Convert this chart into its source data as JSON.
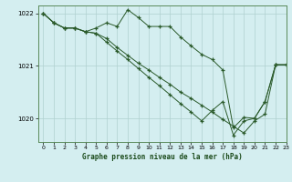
{
  "title": "Graphe pression niveau de la mer (hPa)",
  "bg_color": "#d4eef0",
  "grid_color": "#b0d0d0",
  "line_color": "#2a5a2a",
  "xlim": [
    -0.5,
    23
  ],
  "ylim": [
    1019.55,
    1022.15
  ],
  "yticks": [
    1020,
    1021,
    1022
  ],
  "xticks": [
    0,
    1,
    2,
    3,
    4,
    5,
    6,
    7,
    8,
    9,
    10,
    11,
    12,
    13,
    14,
    15,
    16,
    17,
    18,
    19,
    20,
    21,
    22,
    23
  ],
  "series1_x": [
    0,
    1,
    2,
    3,
    4,
    5,
    6,
    7,
    8,
    9,
    10,
    11,
    12,
    13,
    14,
    15,
    16,
    17,
    18,
    19,
    20,
    21,
    22,
    23
  ],
  "series1_y": [
    1022.0,
    1021.82,
    1021.72,
    1021.72,
    1021.65,
    1021.72,
    1021.82,
    1021.75,
    1022.07,
    1021.92,
    1021.75,
    1021.75,
    1021.75,
    1021.55,
    1021.38,
    1021.22,
    1021.12,
    1020.92,
    1019.82,
    1020.02,
    1020.0,
    1020.32,
    1021.02,
    1021.02
  ],
  "series2_x": [
    0,
    1,
    2,
    3,
    4,
    5,
    6,
    7,
    8,
    9,
    10,
    11,
    12,
    13,
    14,
    15,
    16,
    17,
    18,
    19,
    20,
    21,
    22,
    23
  ],
  "series2_y": [
    1022.0,
    1021.82,
    1021.72,
    1021.72,
    1021.65,
    1021.62,
    1021.52,
    1021.35,
    1021.2,
    1021.05,
    1020.92,
    1020.78,
    1020.65,
    1020.5,
    1020.38,
    1020.25,
    1020.12,
    1019.98,
    1019.85,
    1019.72,
    1019.95,
    1020.08,
    1021.02,
    1021.02
  ],
  "series3_x": [
    0,
    1,
    2,
    3,
    4,
    5,
    6,
    7,
    8,
    9,
    10,
    11,
    12,
    13,
    14,
    15,
    16,
    17,
    18,
    19,
    20,
    21,
    22,
    23
  ],
  "series3_y": [
    1022.0,
    1021.82,
    1021.72,
    1021.72,
    1021.65,
    1021.62,
    1021.45,
    1021.28,
    1021.12,
    1020.95,
    1020.78,
    1020.62,
    1020.45,
    1020.28,
    1020.12,
    1019.95,
    1020.15,
    1020.32,
    1019.68,
    1019.95,
    1020.0,
    1020.32,
    1021.02,
    1021.02
  ]
}
